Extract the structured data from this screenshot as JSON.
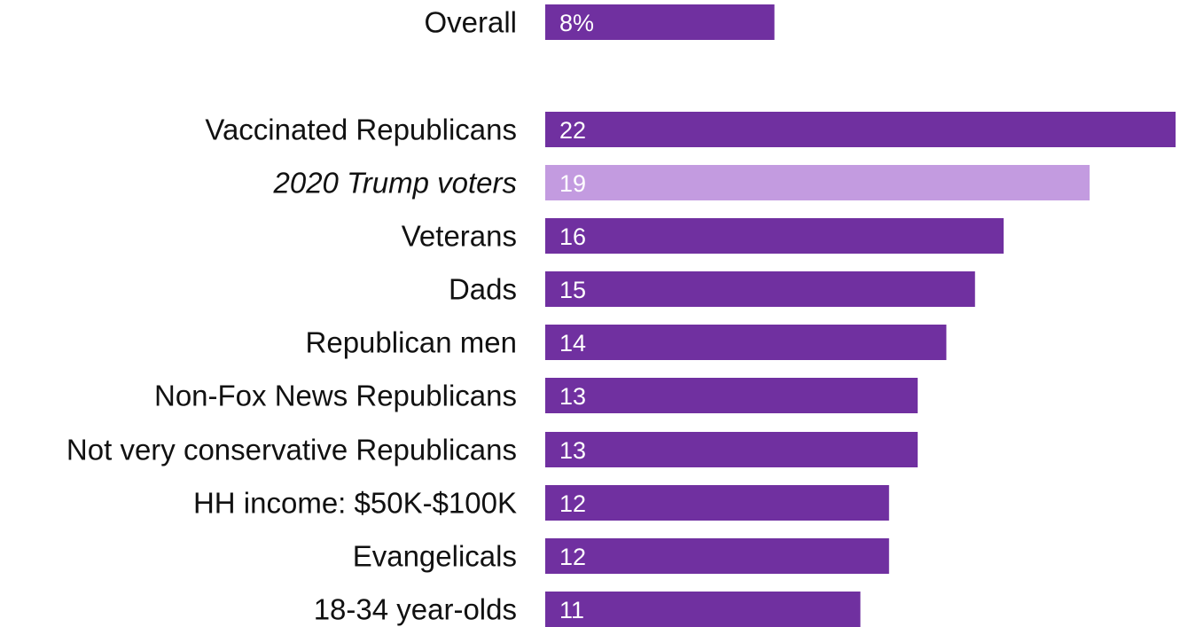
{
  "chart_data": {
    "type": "bar",
    "orientation": "horizontal",
    "title": "",
    "xlabel": "",
    "ylabel": "",
    "xlim": [
      0,
      22
    ],
    "grid": false,
    "legend": "none",
    "categories": [
      "Overall",
      "Vaccinated Republicans",
      "2020 Trump voters",
      "Veterans",
      "Dads",
      "Republican men",
      "Non-Fox News Republicans",
      "Not very conservative Republicans",
      "HH income: $50K-$100K",
      "Evangelicals",
      "18-34 year-olds"
    ],
    "values": [
      8,
      22,
      19,
      16,
      15,
      14,
      13,
      13,
      12,
      12,
      11
    ],
    "value_labels": [
      "8%",
      "22",
      "19",
      "16",
      "15",
      "14",
      "13",
      "13",
      "12",
      "12",
      "11"
    ],
    "highlighted": [
      "2020 Trump voters"
    ],
    "colors": {
      "bar": "#7030A0",
      "highlight_bar": "#C39BE0",
      "value_text": "#ffffff",
      "label_text": "#111111"
    }
  }
}
